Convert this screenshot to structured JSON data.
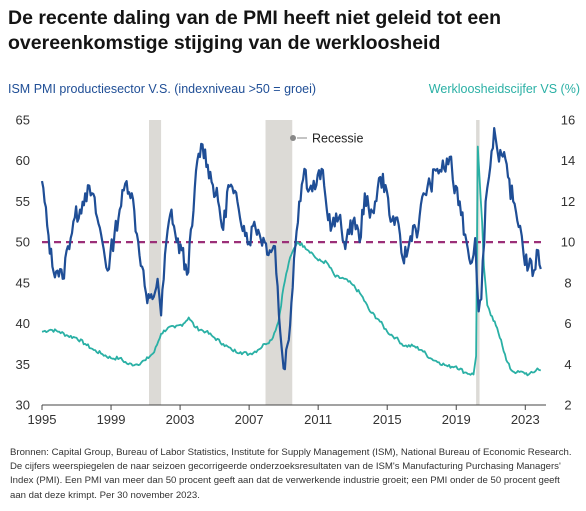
{
  "title": "De recente daling van de PMI heeft niet geleid tot een overeenkomstige stijging van de werkloosheid",
  "left_axis_title": "ISM PMI productiesector V.S. (indexniveau >50 = groei)",
  "right_axis_title": "Werkloosheidscijfer VS (%)",
  "legend_recession": "Recessie",
  "source": "Bronnen: Capital Group, Bureau of Labor Statistics, Institute for Supply Management (ISM), National Bureau of Economic Research. De cijfers weerspiegelen de naar seizoen gecorrigeerde onderzoeksresultaten van de ISM's Manufacturing Purchasing Managers' Index (PMI). Een PMI van meer dan 50 procent geeft aan dat de verwerkende industrie groeit; een PMI onder de 50 procent geeft aan dat deze krimpt. Per 30 november 2023.",
  "colors": {
    "pmi": "#1f4e96",
    "unemployment": "#2ab0a5",
    "threshold": "#9b2f78",
    "recession": "#dcdad6",
    "axis": "#444444"
  },
  "chart_data": {
    "type": "line",
    "x_range": [
      1995,
      2024.2
    ],
    "x_ticks": [
      1995,
      1999,
      2003,
      2007,
      2011,
      2015,
      2019,
      2023
    ],
    "y_left": {
      "label": "ISM PMI productiesector V.S. (indexniveau >50 = groei)",
      "range": [
        30,
        65
      ],
      "ticks": [
        30,
        35,
        40,
        45,
        50,
        55,
        60,
        65
      ]
    },
    "y_right": {
      "label": "Werkloosheidscijfer VS (%)",
      "range": [
        2,
        16
      ],
      "ticks": [
        2,
        4,
        6,
        8,
        10,
        12,
        14,
        16
      ]
    },
    "reference_line": {
      "axis": "left",
      "value": 50
    },
    "recessions": [
      [
        2001.2,
        2001.9
      ],
      [
        2007.95,
        2009.5
      ],
      [
        2020.15,
        2020.35
      ]
    ],
    "series": [
      {
        "name": "ISM PMI productiesector V.S. (indexniveau >50 = groei)",
        "axis": "left",
        "points": [
          [
            1995.0,
            57.5
          ],
          [
            1995.3,
            52
          ],
          [
            1995.6,
            47
          ],
          [
            1995.9,
            46.5
          ],
          [
            1996.2,
            45.5
          ],
          [
            1996.5,
            49.5
          ],
          [
            1996.9,
            53
          ],
          [
            1997.2,
            54
          ],
          [
            1997.5,
            56
          ],
          [
            1997.9,
            56
          ],
          [
            1998.2,
            53
          ],
          [
            1998.5,
            50
          ],
          [
            1998.8,
            46.5
          ],
          [
            1999.2,
            51
          ],
          [
            1999.5,
            54
          ],
          [
            1999.9,
            57.5
          ],
          [
            2000.2,
            56
          ],
          [
            2000.5,
            51
          ],
          [
            2000.8,
            47
          ],
          [
            2001.1,
            42.5
          ],
          [
            2001.4,
            43
          ],
          [
            2001.7,
            45.5
          ],
          [
            2001.9,
            41
          ],
          [
            2002.2,
            50
          ],
          [
            2002.5,
            54
          ],
          [
            2002.8,
            50
          ],
          [
            2003.1,
            49
          ],
          [
            2003.4,
            46
          ],
          [
            2003.7,
            52
          ],
          [
            2004.0,
            60
          ],
          [
            2004.3,
            62
          ],
          [
            2004.6,
            59.5
          ],
          [
            2004.9,
            57
          ],
          [
            2005.2,
            55
          ],
          [
            2005.5,
            51.5
          ],
          [
            2005.8,
            57
          ],
          [
            2006.1,
            56
          ],
          [
            2006.4,
            54
          ],
          [
            2006.7,
            52
          ],
          [
            2007.0,
            50
          ],
          [
            2007.3,
            52.5
          ],
          [
            2007.6,
            51
          ],
          [
            2007.9,
            50
          ],
          [
            2008.2,
            49
          ],
          [
            2008.5,
            49.5
          ],
          [
            2008.8,
            39
          ],
          [
            2009.0,
            34.5
          ],
          [
            2009.3,
            38
          ],
          [
            2009.6,
            48
          ],
          [
            2009.9,
            55
          ],
          [
            2010.2,
            59
          ],
          [
            2010.5,
            56.5
          ],
          [
            2010.9,
            57
          ],
          [
            2011.2,
            59
          ],
          [
            2011.5,
            54
          ],
          [
            2011.8,
            52
          ],
          [
            2012.2,
            53
          ],
          [
            2012.5,
            50
          ],
          [
            2012.8,
            51
          ],
          [
            2013.1,
            53
          ],
          [
            2013.4,
            50
          ],
          [
            2013.7,
            56
          ],
          [
            2014.0,
            53
          ],
          [
            2014.3,
            55
          ],
          [
            2014.6,
            58
          ],
          [
            2014.9,
            57
          ],
          [
            2015.2,
            52.5
          ],
          [
            2015.5,
            53
          ],
          [
            2015.9,
            48
          ],
          [
            2016.2,
            49
          ],
          [
            2016.5,
            52
          ],
          [
            2016.8,
            51.5
          ],
          [
            2017.1,
            56
          ],
          [
            2017.5,
            57
          ],
          [
            2017.9,
            59
          ],
          [
            2018.3,
            59
          ],
          [
            2018.7,
            60.5
          ],
          [
            2018.9,
            56
          ],
          [
            2019.2,
            55
          ],
          [
            2019.6,
            50
          ],
          [
            2019.9,
            47.5
          ],
          [
            2020.1,
            50.5
          ],
          [
            2020.3,
            41.5
          ],
          [
            2020.45,
            43
          ],
          [
            2020.7,
            55
          ],
          [
            2020.9,
            58
          ],
          [
            2021.2,
            64
          ],
          [
            2021.4,
            61
          ],
          [
            2021.7,
            60.5
          ],
          [
            2022.0,
            58
          ],
          [
            2022.3,
            55
          ],
          [
            2022.7,
            52
          ],
          [
            2022.9,
            48.5
          ],
          [
            2023.2,
            47
          ],
          [
            2023.5,
            46.5
          ],
          [
            2023.75,
            49
          ],
          [
            2023.9,
            46.7
          ]
        ]
      },
      {
        "name": "Werkloosheidscijfer VS (%)",
        "axis": "right",
        "points": [
          [
            1995.0,
            5.6
          ],
          [
            1995.5,
            5.7
          ],
          [
            1996.0,
            5.6
          ],
          [
            1996.5,
            5.4
          ],
          [
            1997.0,
            5.3
          ],
          [
            1997.5,
            5.0
          ],
          [
            1998.0,
            4.7
          ],
          [
            1998.5,
            4.5
          ],
          [
            1999.0,
            4.3
          ],
          [
            1999.5,
            4.3
          ],
          [
            2000.0,
            4.0
          ],
          [
            2000.5,
            4.0
          ],
          [
            2001.0,
            4.2
          ],
          [
            2001.5,
            4.6
          ],
          [
            2001.9,
            5.5
          ],
          [
            2002.3,
            5.8
          ],
          [
            2002.7,
            5.8
          ],
          [
            2003.2,
            6.0
          ],
          [
            2003.5,
            6.3
          ],
          [
            2003.9,
            5.8
          ],
          [
            2004.5,
            5.6
          ],
          [
            2005.0,
            5.3
          ],
          [
            2005.5,
            5.0
          ],
          [
            2006.0,
            4.7
          ],
          [
            2006.5,
            4.6
          ],
          [
            2007.0,
            4.5
          ],
          [
            2007.5,
            4.7
          ],
          [
            2007.9,
            5.0
          ],
          [
            2008.3,
            5.2
          ],
          [
            2008.7,
            6.1
          ],
          [
            2009.0,
            7.8
          ],
          [
            2009.3,
            9.0
          ],
          [
            2009.6,
            9.7
          ],
          [
            2009.8,
            10.0
          ],
          [
            2010.2,
            9.8
          ],
          [
            2010.6,
            9.5
          ],
          [
            2011.0,
            9.1
          ],
          [
            2011.5,
            9.0
          ],
          [
            2012.0,
            8.3
          ],
          [
            2012.5,
            8.2
          ],
          [
            2013.0,
            7.9
          ],
          [
            2013.5,
            7.4
          ],
          [
            2014.0,
            6.6
          ],
          [
            2014.5,
            6.2
          ],
          [
            2015.0,
            5.6
          ],
          [
            2015.5,
            5.3
          ],
          [
            2016.0,
            4.9
          ],
          [
            2016.5,
            4.9
          ],
          [
            2017.0,
            4.7
          ],
          [
            2017.5,
            4.3
          ],
          [
            2018.0,
            4.1
          ],
          [
            2018.5,
            3.9
          ],
          [
            2019.0,
            3.9
          ],
          [
            2019.5,
            3.6
          ],
          [
            2020.0,
            3.5
          ],
          [
            2020.15,
            4.4
          ],
          [
            2020.25,
            14.7
          ],
          [
            2020.35,
            13.2
          ],
          [
            2020.5,
            11.0
          ],
          [
            2020.6,
            8.8
          ],
          [
            2020.8,
            6.9
          ],
          [
            2021.0,
            6.4
          ],
          [
            2021.3,
            5.9
          ],
          [
            2021.6,
            5.2
          ],
          [
            2021.9,
            4.2
          ],
          [
            2022.2,
            3.7
          ],
          [
            2022.5,
            3.6
          ],
          [
            2022.9,
            3.6
          ],
          [
            2023.2,
            3.5
          ],
          [
            2023.5,
            3.6
          ],
          [
            2023.7,
            3.8
          ],
          [
            2023.9,
            3.7
          ]
        ]
      }
    ]
  }
}
